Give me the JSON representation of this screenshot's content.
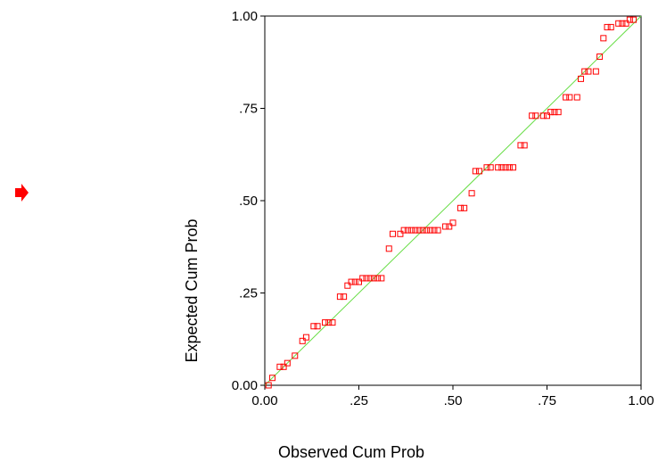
{
  "colors": {
    "marker": "#ff0000",
    "reference_line": "#66dd44",
    "axis": "#000000",
    "arrow": "#ff0000"
  },
  "indicator_icon": "red-arrow-right-icon",
  "chart_data": {
    "type": "scatter",
    "title": "",
    "xlabel": "Observed Cum Prob",
    "ylabel": "Expected Cum Prob",
    "xlim": [
      0,
      1
    ],
    "ylim": [
      0,
      1
    ],
    "xticks": [
      "0.00",
      ".25",
      ".50",
      ".75",
      "1.00"
    ],
    "yticks": [
      "0.00",
      ".25",
      ".50",
      ".75",
      "1.00"
    ],
    "grid": false,
    "legend": "none",
    "reference_line": {
      "from": [
        0,
        0
      ],
      "to": [
        1,
        1
      ]
    },
    "marker": "open-square",
    "points": [
      [
        0.01,
        0.0
      ],
      [
        0.02,
        0.02
      ],
      [
        0.04,
        0.05
      ],
      [
        0.05,
        0.05
      ],
      [
        0.06,
        0.06
      ],
      [
        0.08,
        0.08
      ],
      [
        0.1,
        0.12
      ],
      [
        0.11,
        0.13
      ],
      [
        0.13,
        0.16
      ],
      [
        0.14,
        0.16
      ],
      [
        0.16,
        0.17
      ],
      [
        0.17,
        0.17
      ],
      [
        0.18,
        0.17
      ],
      [
        0.2,
        0.24
      ],
      [
        0.21,
        0.24
      ],
      [
        0.22,
        0.27
      ],
      [
        0.23,
        0.28
      ],
      [
        0.24,
        0.28
      ],
      [
        0.25,
        0.28
      ],
      [
        0.26,
        0.29
      ],
      [
        0.27,
        0.29
      ],
      [
        0.28,
        0.29
      ],
      [
        0.29,
        0.29
      ],
      [
        0.3,
        0.29
      ],
      [
        0.31,
        0.29
      ],
      [
        0.33,
        0.37
      ],
      [
        0.34,
        0.41
      ],
      [
        0.36,
        0.41
      ],
      [
        0.37,
        0.42
      ],
      [
        0.38,
        0.42
      ],
      [
        0.39,
        0.42
      ],
      [
        0.4,
        0.42
      ],
      [
        0.41,
        0.42
      ],
      [
        0.42,
        0.42
      ],
      [
        0.43,
        0.42
      ],
      [
        0.44,
        0.42
      ],
      [
        0.45,
        0.42
      ],
      [
        0.46,
        0.42
      ],
      [
        0.48,
        0.43
      ],
      [
        0.49,
        0.43
      ],
      [
        0.5,
        0.44
      ],
      [
        0.52,
        0.48
      ],
      [
        0.53,
        0.48
      ],
      [
        0.55,
        0.52
      ],
      [
        0.56,
        0.58
      ],
      [
        0.57,
        0.58
      ],
      [
        0.59,
        0.59
      ],
      [
        0.6,
        0.59
      ],
      [
        0.62,
        0.59
      ],
      [
        0.63,
        0.59
      ],
      [
        0.64,
        0.59
      ],
      [
        0.65,
        0.59
      ],
      [
        0.66,
        0.59
      ],
      [
        0.68,
        0.65
      ],
      [
        0.69,
        0.65
      ],
      [
        0.71,
        0.73
      ],
      [
        0.72,
        0.73
      ],
      [
        0.74,
        0.73
      ],
      [
        0.75,
        0.73
      ],
      [
        0.76,
        0.74
      ],
      [
        0.77,
        0.74
      ],
      [
        0.78,
        0.74
      ],
      [
        0.8,
        0.78
      ],
      [
        0.81,
        0.78
      ],
      [
        0.83,
        0.78
      ],
      [
        0.84,
        0.83
      ],
      [
        0.85,
        0.85
      ],
      [
        0.86,
        0.85
      ],
      [
        0.88,
        0.85
      ],
      [
        0.89,
        0.89
      ],
      [
        0.9,
        0.94
      ],
      [
        0.91,
        0.97
      ],
      [
        0.92,
        0.97
      ],
      [
        0.94,
        0.98
      ],
      [
        0.95,
        0.98
      ],
      [
        0.96,
        0.98
      ],
      [
        0.97,
        0.99
      ],
      [
        0.98,
        0.99
      ]
    ]
  }
}
